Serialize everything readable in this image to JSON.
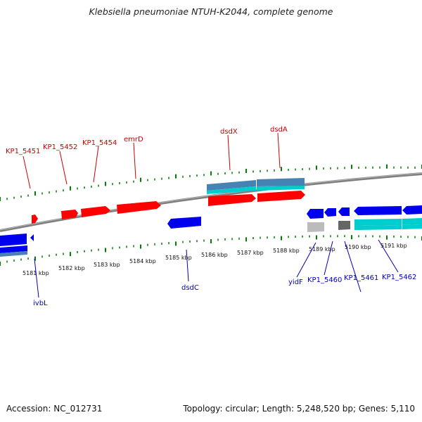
{
  "title": "Klebsiella pneumoniae NTUH-K2044, complete genome",
  "footer": {
    "accession": "Accession: NC_012731",
    "stats": "Topology: circular; Length: 5,248,520 bp; Genes: 5,110"
  },
  "colors": {
    "forward_cds": "#ff0000",
    "reverse_cds": "#0000ee",
    "forward_rna": "#4682b4",
    "reverse_rna": "#00cdcd",
    "pseudogene": "#bbbbbb",
    "other_feature": "#666666",
    "backbone": "#7f7f7f",
    "ticks": "#008000"
  },
  "scale_labels": [
    "5181 kbp",
    "5182 kbp",
    "5183 kbp",
    "5184 kbp",
    "5185 kbp",
    "5186 kbp",
    "5187 kbp",
    "5188 kbp",
    "5189 kbp",
    "5190 kbp",
    "5191 kbp"
  ],
  "forward_gene_labels": [
    "KP1_5451",
    "KP1_5452",
    "KP1_5454",
    "emrD",
    "dsdX",
    "dsdA"
  ],
  "reverse_gene_labels": [
    "ivbL",
    "dsdC",
    "yidF",
    "KP1_5460",
    "KP1_5461",
    "KP1_5462"
  ]
}
